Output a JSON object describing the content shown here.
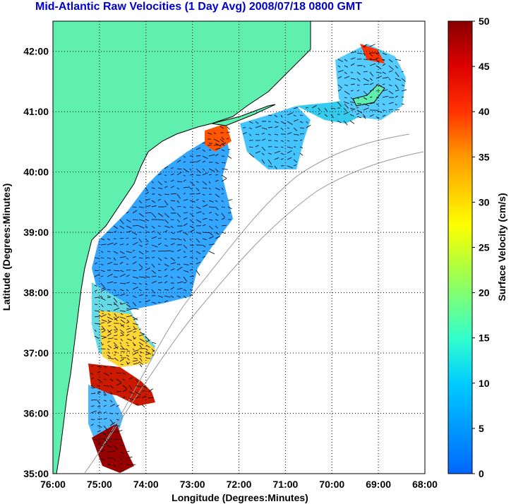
{
  "title": "Mid-Atlantic Raw Velocities (1 Day Avg) 2008/07/18 0800 GMT",
  "x_axis": {
    "label": "Longitude (Degrees:Minutes)",
    "ticks": [
      "76:00",
      "75:00",
      "74:00",
      "73:00",
      "72:00",
      "71:00",
      "70:00",
      "69:00",
      "68:00"
    ],
    "values": [
      -76,
      -75,
      -74,
      -73,
      -72,
      -71,
      -70,
      -69,
      -68
    ]
  },
  "y_axis": {
    "label": "Latitude (Degrees:Minutes)",
    "ticks": [
      "35:00",
      "36:00",
      "37:00",
      "38:00",
      "39:00",
      "40:00",
      "41:00",
      "42:00"
    ],
    "values": [
      35,
      36,
      37,
      38,
      39,
      40,
      41,
      42
    ]
  },
  "map_extent": {
    "lon_min": -76,
    "lon_max": -68,
    "lat_min": 35,
    "lat_max": 42.5
  },
  "colorbar": {
    "label": "Surface Velocity (cm/s)",
    "ticks": [
      "0",
      "5",
      "10",
      "15",
      "20",
      "25",
      "30",
      "35",
      "40",
      "45",
      "50"
    ],
    "range": [
      0,
      50
    ]
  },
  "colors": {
    "land": "#5ff0b0",
    "title": "#0000cc",
    "contour": "#999999"
  }
}
